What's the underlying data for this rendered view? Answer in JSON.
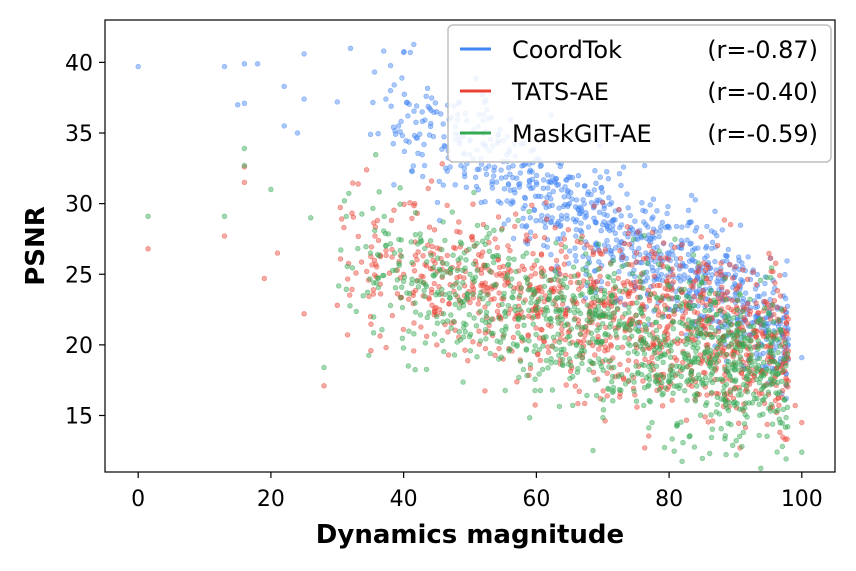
{
  "chart_data": {
    "type": "scatter",
    "title": "",
    "xlabel": "Dynamics magnitude",
    "ylabel": "PSNR",
    "xlim": [
      -5,
      105
    ],
    "ylim": [
      11,
      43
    ],
    "xticks": [
      0,
      20,
      40,
      60,
      80,
      100
    ],
    "yticks": [
      15,
      20,
      25,
      30,
      35,
      40
    ],
    "grid": false,
    "legend_position": "top-right",
    "series": [
      {
        "name": "CoordTok",
        "stat": "(r=-0.87)",
        "color": "#4285f4",
        "trend": {
          "slope": -0.26,
          "intercept": 46.5,
          "spread": 2.2,
          "xmin": 35,
          "xmax": 98
        },
        "n_generated": 900,
        "sample_points": [
          [
            0,
            39.7
          ],
          [
            13,
            39.7
          ],
          [
            16,
            39.9
          ],
          [
            18,
            39.9
          ],
          [
            22,
            38.3
          ],
          [
            25,
            40.6
          ],
          [
            32,
            41.0
          ],
          [
            37,
            40.8
          ],
          [
            40,
            40.7
          ],
          [
            41,
            40.7
          ],
          [
            25,
            37.4
          ],
          [
            30,
            37.2
          ],
          [
            15,
            37.0
          ],
          [
            16,
            37.1
          ],
          [
            22,
            35.5
          ],
          [
            24,
            35.0
          ],
          [
            35,
            34.9
          ],
          [
            45,
            36.5
          ],
          [
            50,
            34.5
          ],
          [
            55,
            33.0
          ],
          [
            60,
            31.5
          ],
          [
            65,
            30.0
          ],
          [
            70,
            28.5
          ],
          [
            75,
            27.5
          ],
          [
            80,
            26.5
          ],
          [
            85,
            25.5
          ],
          [
            88,
            24.5
          ],
          [
            90,
            23.0
          ],
          [
            93,
            22.0
          ],
          [
            95,
            21.5
          ],
          [
            97,
            20.8
          ],
          [
            100,
            19.1
          ]
        ]
      },
      {
        "name": "TATS-AE",
        "stat": "(r=-0.40)",
        "color": "#ea4335",
        "trend": {
          "slope": -0.1,
          "intercept": 29.5,
          "spread": 2.8,
          "xmin": 30,
          "xmax": 98
        },
        "n_generated": 1100,
        "sample_points": [
          [
            1.5,
            26.8
          ],
          [
            13,
            27.7
          ],
          [
            16,
            32.6
          ],
          [
            16,
            31.5
          ],
          [
            19,
            24.7
          ],
          [
            21,
            26.5
          ],
          [
            25,
            22.2
          ],
          [
            28,
            17.1
          ],
          [
            30,
            22.8
          ],
          [
            35,
            22.0
          ],
          [
            40,
            25.0
          ],
          [
            45,
            20.0
          ],
          [
            50,
            23.0
          ],
          [
            55,
            19.0
          ],
          [
            60,
            24.0
          ],
          [
            65,
            21.0
          ],
          [
            70,
            23.0
          ],
          [
            75,
            20.0
          ],
          [
            80,
            22.0
          ],
          [
            85,
            19.0
          ],
          [
            90,
            17.0
          ],
          [
            95,
            16.5
          ],
          [
            99,
            15.7
          ],
          [
            100,
            14.5
          ]
        ]
      },
      {
        "name": "MaskGIT-AE",
        "stat": "(r=-0.59)",
        "color": "#34a853",
        "trend": {
          "slope": -0.12,
          "intercept": 29.5,
          "spread": 2.7,
          "xmin": 30,
          "xmax": 98
        },
        "n_generated": 1100,
        "sample_points": [
          [
            1.5,
            29.1
          ],
          [
            13,
            29.1
          ],
          [
            16,
            33.9
          ],
          [
            16,
            32.7
          ],
          [
            20,
            31.0
          ],
          [
            26,
            29.0
          ],
          [
            28,
            18.4
          ],
          [
            35,
            26.5
          ],
          [
            40,
            24.5
          ],
          [
            45,
            22.0
          ],
          [
            50,
            25.0
          ],
          [
            55,
            20.5
          ],
          [
            60,
            23.0
          ],
          [
            65,
            19.0
          ],
          [
            70,
            21.5
          ],
          [
            75,
            18.5
          ],
          [
            80,
            20.0
          ],
          [
            85,
            17.5
          ],
          [
            90,
            18.5
          ],
          [
            95,
            15.5
          ],
          [
            96,
            15.3
          ],
          [
            100,
            12.4
          ]
        ]
      }
    ]
  }
}
